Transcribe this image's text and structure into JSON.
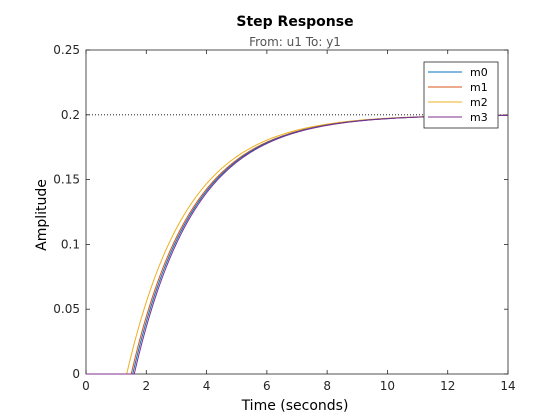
{
  "chart_data": {
    "type": "line",
    "title": "Step Response",
    "subtitle": "From: u1  To: y1",
    "xlabel": "Time (seconds)",
    "ylabel": "Amplitude",
    "xlim": [
      0,
      14
    ],
    "ylim": [
      0,
      0.25
    ],
    "xticks": [
      "0",
      "2",
      "4",
      "6",
      "8",
      "10",
      "12",
      "14"
    ],
    "yticks": [
      "0",
      "0.05",
      "0.1",
      "0.15",
      "0.2",
      "0.25"
    ],
    "xtick_values": [
      0,
      2,
      4,
      6,
      8,
      10,
      12,
      14
    ],
    "ytick_values": [
      0,
      0.05,
      0.1,
      0.15,
      0.2,
      0.25
    ],
    "grid": false,
    "legend_position": "top-right",
    "steady_state": 0.2,
    "series": [
      {
        "name": "m0",
        "color": "#0072BD",
        "delay": 1.55,
        "tau": 2.0,
        "gain": 0.2
      },
      {
        "name": "m1",
        "color": "#D95319",
        "delay": 1.5,
        "tau": 2.0,
        "gain": 0.2
      },
      {
        "name": "m2",
        "color": "#EDB120",
        "delay": 1.35,
        "tau": 2.0,
        "gain": 0.2
      },
      {
        "name": "m3",
        "color": "#7E2F8E",
        "delay": 1.6,
        "tau": 2.0,
        "gain": 0.2
      }
    ]
  }
}
